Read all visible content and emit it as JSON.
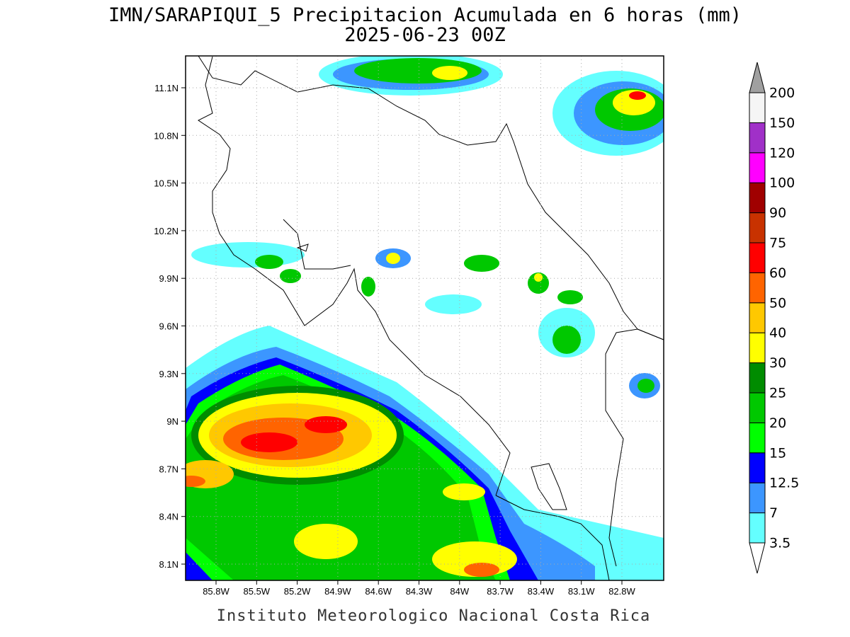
{
  "title": "IMN/SARAPIQUI_5 Precipitacion Acumulada en 6 horas (mm)",
  "subtitle": "2025-06-23 00Z",
  "footer": "Instituto Meteorologico Nacional Costa Rica",
  "x_labels": [
    "85.8W",
    "85.5W",
    "85.2W",
    "84.9W",
    "84.6W",
    "84.3W",
    "84W",
    "83.7W",
    "83.4W",
    "83.1W",
    "82.8W"
  ],
  "y_labels": [
    "11.1N",
    "10.8N",
    "10.5N",
    "10.2N",
    "9.9N",
    "9.6N",
    "9.3N",
    "9N",
    "8.7N",
    "8.4N",
    "8.1N"
  ],
  "colorbar": {
    "labels": [
      "3.5",
      "7",
      "12.5",
      "15",
      "20",
      "25",
      "30",
      "40",
      "50",
      "60",
      "75",
      "90",
      "100",
      "120",
      "150",
      "200"
    ],
    "colors": [
      "#64ffff",
      "#3c96ff",
      "#0000ff",
      "#00ff00",
      "#00c800",
      "#008c00",
      "#ffff00",
      "#ffc800",
      "#ff6400",
      "#ff0000",
      "#c83200",
      "#a00000",
      "#ff00ff",
      "#a030c8",
      "#f5f5f5"
    ],
    "over_color": "#a0a0a0"
  }
}
